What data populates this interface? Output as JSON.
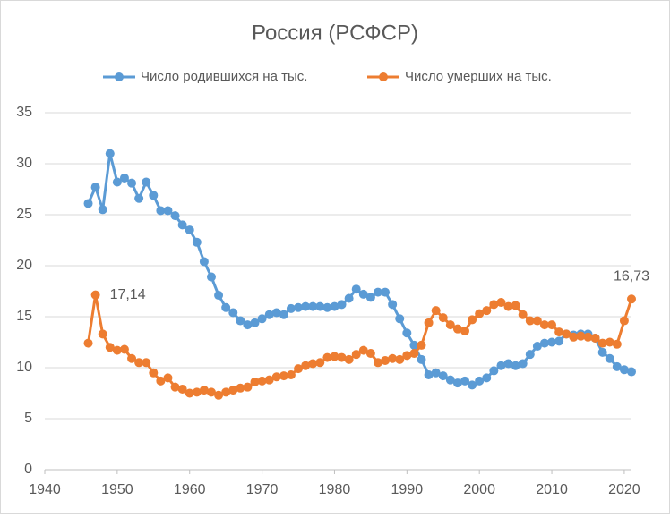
{
  "chart_data": {
    "type": "line",
    "title": "Россия (РСФСР)",
    "x": [
      1946,
      1947,
      1948,
      1949,
      1950,
      1951,
      1952,
      1953,
      1954,
      1955,
      1956,
      1957,
      1958,
      1959,
      1960,
      1961,
      1962,
      1963,
      1964,
      1965,
      1966,
      1967,
      1968,
      1969,
      1970,
      1971,
      1972,
      1973,
      1974,
      1975,
      1976,
      1977,
      1978,
      1979,
      1980,
      1981,
      1982,
      1983,
      1984,
      1985,
      1986,
      1987,
      1988,
      1989,
      1990,
      1991,
      1992,
      1993,
      1994,
      1995,
      1996,
      1997,
      1998,
      1999,
      2000,
      2001,
      2002,
      2003,
      2004,
      2005,
      2006,
      2007,
      2008,
      2009,
      2010,
      2011,
      2012,
      2013,
      2014,
      2015,
      2016,
      2017,
      2018,
      2019,
      2020,
      2021
    ],
    "series": [
      {
        "name": "Число родившихся на тыс.",
        "color": "#5b9bd5",
        "values": [
          26.1,
          27.7,
          25.5,
          31.0,
          28.2,
          28.6,
          28.1,
          26.6,
          28.2,
          26.9,
          25.4,
          25.4,
          24.9,
          24.0,
          23.5,
          22.3,
          20.4,
          18.9,
          17.1,
          15.9,
          15.4,
          14.6,
          14.2,
          14.4,
          14.8,
          15.2,
          15.4,
          15.2,
          15.8,
          15.9,
          16.0,
          16.0,
          16.0,
          15.9,
          16.0,
          16.2,
          16.8,
          17.7,
          17.2,
          16.9,
          17.4,
          17.4,
          16.2,
          14.8,
          13.4,
          12.2,
          10.8,
          9.3,
          9.5,
          9.2,
          8.8,
          8.5,
          8.7,
          8.3,
          8.7,
          9.0,
          9.7,
          10.2,
          10.4,
          10.2,
          10.4,
          11.3,
          12.1,
          12.4,
          12.5,
          12.6,
          13.3,
          13.2,
          13.3,
          13.3,
          12.9,
          11.5,
          10.9,
          10.1,
          9.8,
          9.6
        ]
      },
      {
        "name": "Число умерших на тыс.",
        "color": "#ed7d31",
        "values": [
          12.4,
          17.14,
          13.3,
          12.0,
          11.7,
          11.8,
          10.9,
          10.5,
          10.5,
          9.5,
          8.7,
          9.0,
          8.1,
          7.9,
          7.5,
          7.6,
          7.8,
          7.6,
          7.3,
          7.6,
          7.8,
          8.0,
          8.1,
          8.6,
          8.7,
          8.8,
          9.1,
          9.2,
          9.3,
          9.9,
          10.2,
          10.4,
          10.5,
          11.0,
          11.1,
          11.0,
          10.8,
          11.3,
          11.7,
          11.4,
          10.5,
          10.7,
          10.9,
          10.8,
          11.2,
          11.4,
          12.2,
          14.4,
          15.6,
          14.9,
          14.2,
          13.8,
          13.6,
          14.7,
          15.3,
          15.6,
          16.2,
          16.4,
          16.0,
          16.1,
          15.2,
          14.6,
          14.6,
          14.2,
          14.2,
          13.5,
          13.3,
          13.0,
          13.1,
          13.0,
          12.9,
          12.4,
          12.5,
          12.3,
          14.6,
          16.73
        ],
        "value_labels": [
          null,
          "17,14",
          null,
          null,
          null,
          null,
          null,
          null,
          null,
          null,
          null,
          null,
          null,
          null,
          null,
          null,
          null,
          null,
          null,
          null,
          null,
          null,
          null,
          null,
          null,
          null,
          null,
          null,
          null,
          null,
          null,
          null,
          null,
          null,
          null,
          null,
          null,
          null,
          null,
          null,
          null,
          null,
          null,
          null,
          null,
          null,
          null,
          null,
          null,
          null,
          null,
          null,
          null,
          null,
          null,
          null,
          null,
          null,
          null,
          null,
          null,
          null,
          null,
          null,
          null,
          null,
          null,
          null,
          null,
          null,
          null,
          null,
          null,
          null,
          null,
          "16,73"
        ]
      }
    ],
    "xlim": [
      1940,
      2021
    ],
    "xticks": [
      1940,
      1950,
      1960,
      1970,
      1980,
      1990,
      2000,
      2010,
      2020
    ],
    "ylim": [
      0,
      35
    ],
    "yticks": [
      0,
      5,
      10,
      15,
      20,
      25,
      30,
      35
    ],
    "grid": true,
    "legend": "top"
  }
}
